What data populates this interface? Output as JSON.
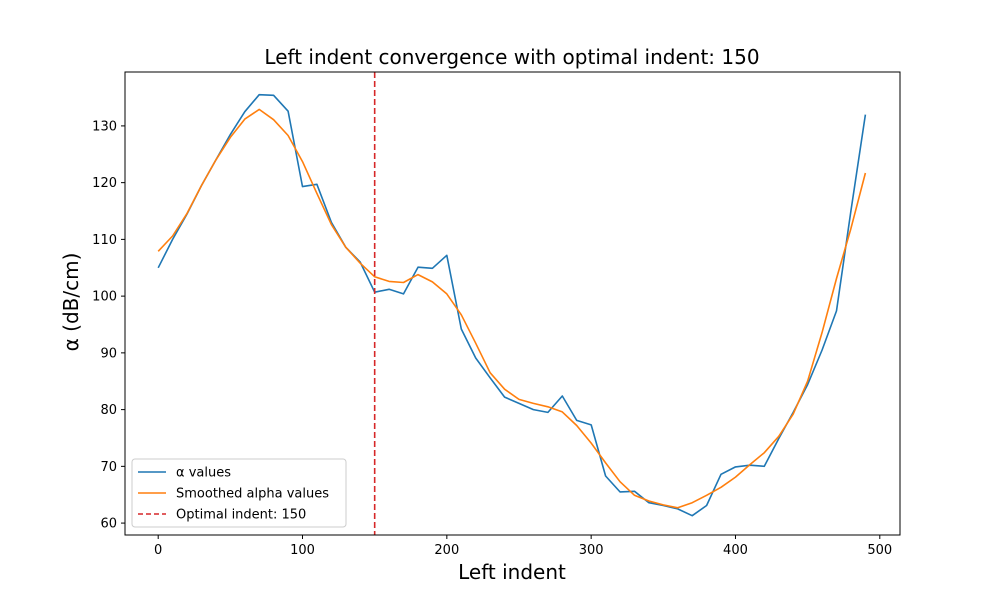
{
  "chart_data": {
    "type": "line",
    "title": "Left indent convergence with optimal indent: 150",
    "xlabel": "Left indent",
    "ylabel": "α (dB/cm)",
    "xlim": [
      -23,
      514
    ],
    "ylim": [
      57.9,
      139.5
    ],
    "xticks": [
      0,
      100,
      200,
      300,
      400,
      500
    ],
    "yticks": [
      60,
      70,
      80,
      90,
      100,
      110,
      120,
      130
    ],
    "grid": false,
    "legend_position": "lower-left",
    "x": [
      0,
      10,
      20,
      30,
      40,
      50,
      60,
      70,
      80,
      90,
      100,
      110,
      120,
      130,
      140,
      150,
      160,
      170,
      180,
      190,
      200,
      210,
      220,
      230,
      240,
      250,
      260,
      270,
      280,
      290,
      300,
      310,
      320,
      330,
      340,
      350,
      360,
      370,
      380,
      390,
      400,
      410,
      420,
      430,
      440,
      450,
      460,
      470,
      480,
      490
    ],
    "series": [
      {
        "name": "α values",
        "color": "#1f77b4",
        "values": [
          105.0,
          110.0,
          114.5,
          119.5,
          124.0,
          128.5,
          132.5,
          135.5,
          135.4,
          132.6,
          119.3,
          119.7,
          113.0,
          108.6,
          106.0,
          100.7,
          101.2,
          100.4,
          105.1,
          104.9,
          107.2,
          94.2,
          89.1,
          85.6,
          82.2,
          81.1,
          80.0,
          79.5,
          82.4,
          78.1,
          77.3,
          68.3,
          65.5,
          65.6,
          63.6,
          63.1,
          62.5,
          61.3,
          63.1,
          68.6,
          69.9,
          70.2,
          70.0,
          74.9,
          79.5,
          84.4,
          90.5,
          97.4,
          115.0,
          132.0
        ]
      },
      {
        "name": "Smoothed alpha values",
        "color": "#ff7f0e",
        "values": [
          107.9,
          110.6,
          114.6,
          119.5,
          124.0,
          128.0,
          131.2,
          132.9,
          131.1,
          128.3,
          123.7,
          118.1,
          112.6,
          108.6,
          105.8,
          103.4,
          102.6,
          102.4,
          103.8,
          102.5,
          100.4,
          96.7,
          91.7,
          86.5,
          83.6,
          81.8,
          81.1,
          80.5,
          79.6,
          77.2,
          74.1,
          70.6,
          67.3,
          64.9,
          63.9,
          63.2,
          62.7,
          63.6,
          64.9,
          66.3,
          68.1,
          70.3,
          72.4,
          75.3,
          79.2,
          85.0,
          93.6,
          103.1,
          111.9,
          121.7
        ]
      }
    ],
    "vline": {
      "x": 150,
      "label": "Optimal indent: 150",
      "color": "#d62728"
    }
  }
}
